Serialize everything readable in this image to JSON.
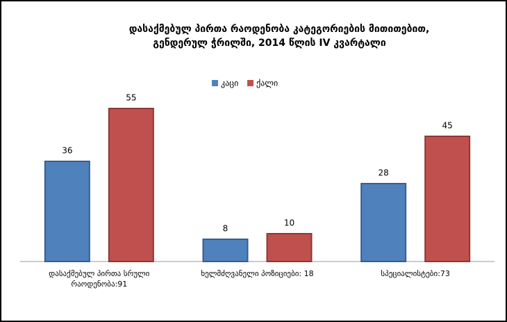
{
  "chart_data": {
    "type": "bar",
    "title": [
      "დასაქმებულ პირთა რაოდენობა კატეგორიების მითითებით,",
      "გენდერულ ჭრილში, 2014 წლის IV კვარტალი"
    ],
    "categories": [
      "დასაქმებულ პირთა სრული რაოდენობა:91",
      "ხელმძღვანელი პოზიციები: 18",
      "სპეციალისტები:73"
    ],
    "series": [
      {
        "name": "კაცი",
        "color": "#4f81bd",
        "values": [
          36,
          8,
          28
        ]
      },
      {
        "name": "ქალი",
        "color": "#c0504d",
        "values": [
          55,
          10,
          45
        ]
      }
    ],
    "ylim": [
      0,
      60
    ]
  }
}
